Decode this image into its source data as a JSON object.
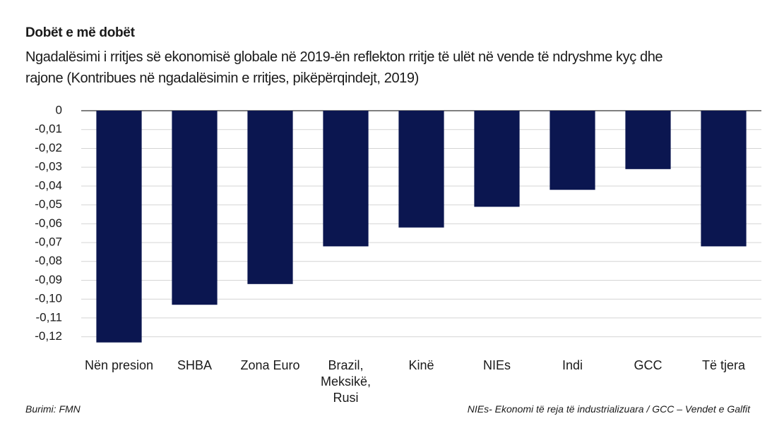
{
  "chart_data": {
    "type": "bar",
    "title": "Dobët e më dobët",
    "subtitle": "Ngadalësimi i rritjes së ekonomisë globale në 2019-ën reflekton rritje të ulët në vende të ndryshme kyç dhe rajone (Kontribues në ngadalësimin e rritjes, pikëpërqindejt, 2019)",
    "categories": [
      "Nën presion",
      "SHBA",
      "Zona Euro",
      "Brazil, Meksikë, Rusi",
      "Kinë",
      "NIEs",
      "Indi",
      "GCC",
      "Të tjera"
    ],
    "values": [
      -0.123,
      -0.103,
      -0.092,
      -0.072,
      -0.062,
      -0.051,
      -0.042,
      -0.031,
      -0.072
    ],
    "color": "#0b1650",
    "ylim": [
      -0.125,
      0
    ],
    "yticks": [
      0,
      {
        "value": -0.01,
        "label": "-0,01"
      },
      {
        "value": -0.02,
        "label": "-0,02"
      },
      {
        "value": -0.03,
        "label": "-0,03"
      },
      {
        "value": -0.04,
        "label": "-0,04"
      },
      {
        "value": -0.05,
        "label": "-0,05"
      },
      {
        "value": -0.06,
        "label": "-0,06"
      },
      {
        "value": -0.07,
        "label": "-0,07"
      },
      {
        "value": -0.08,
        "label": "-0,08"
      },
      {
        "value": -0.09,
        "label": "-0,09"
      },
      {
        "value": -0.1,
        "label": "-0,10"
      },
      {
        "value": -0.11,
        "label": "-0,11"
      },
      {
        "value": -0.12,
        "label": "-0,12"
      }
    ],
    "grid": true,
    "source": "Burimi: FMN",
    "note": "NIEs- Ekonomi të reja të industrializuara  /  GCC – Vendet e Galfit"
  }
}
